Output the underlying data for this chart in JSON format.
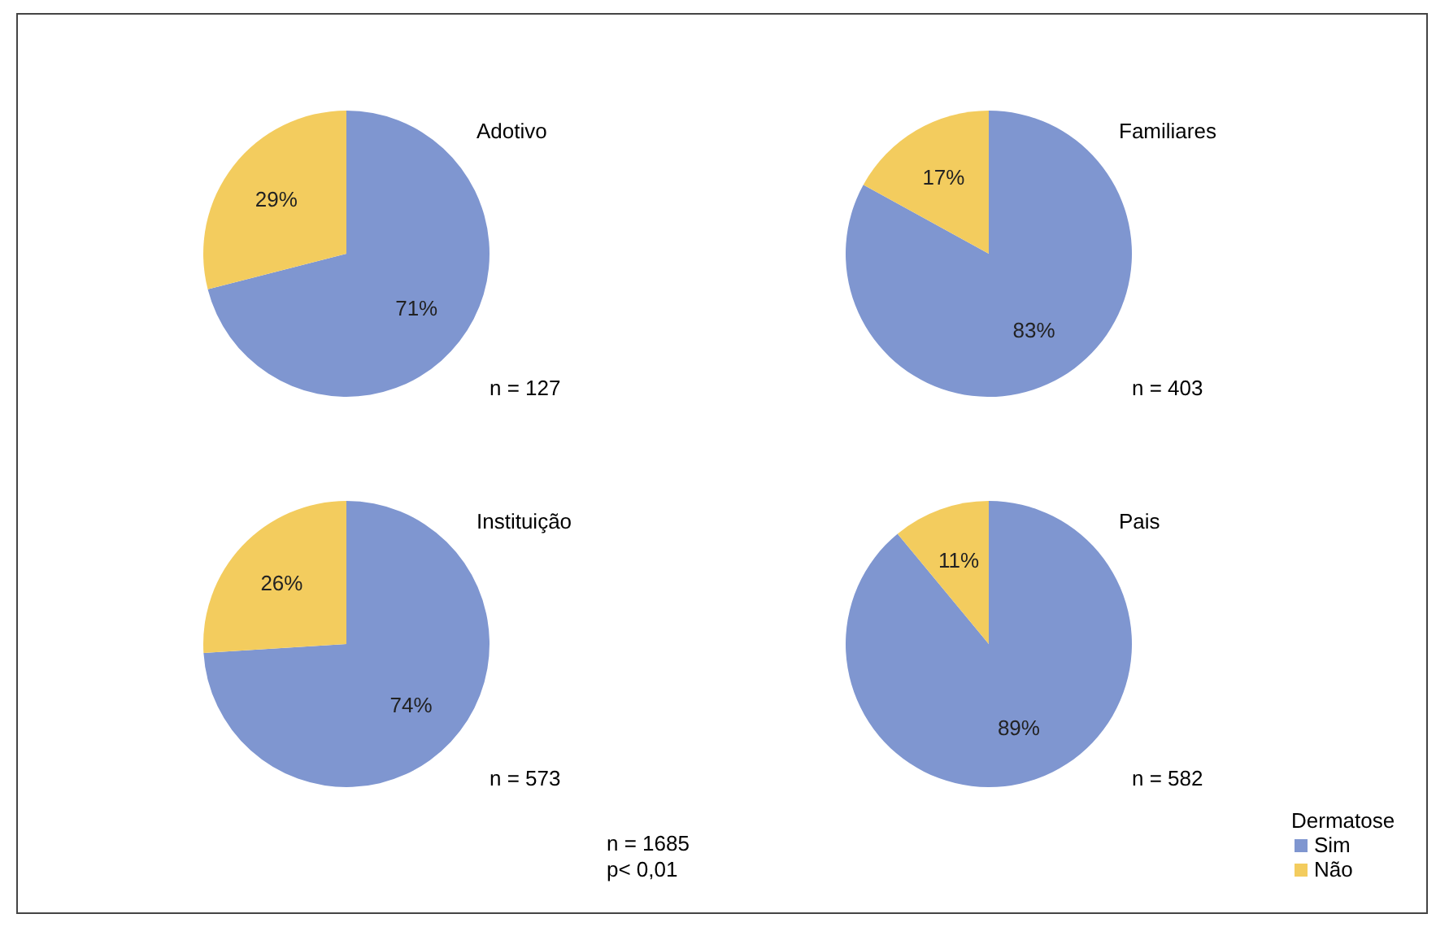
{
  "chart_data": [
    {
      "type": "pie",
      "title": "Adotivo",
      "categories": [
        null,
        null
      ],
      "values": [
        71,
        29
      ],
      "value_labels": [
        "71%",
        "29%"
      ],
      "colors": [
        "#7f96d0",
        "#f3cc5e"
      ],
      "annotations": [
        "n = 127"
      ]
    },
    {
      "type": "pie",
      "title": "Familiares",
      "categories": [
        null,
        null
      ],
      "values": [
        83,
        17
      ],
      "value_labels": [
        "83%",
        "17%"
      ],
      "colors": [
        "#7f96d0",
        "#f3cc5e"
      ],
      "annotations": [
        "n = 403"
      ]
    },
    {
      "type": "pie",
      "title": "Instituição",
      "categories": [
        null,
        null
      ],
      "values": [
        74,
        26
      ],
      "value_labels": [
        "74%",
        "26%"
      ],
      "colors": [
        "#7f96d0",
        "#f3cc5e"
      ],
      "annotations": [
        "n = 573"
      ]
    },
    {
      "type": "pie",
      "title": "Pais",
      "categories": [
        "Sim",
        "Não"
      ],
      "values": [
        89,
        11
      ],
      "value_labels": [
        "89%",
        "11%"
      ],
      "colors": [
        "#7f96d0",
        "#f3cc5e"
      ],
      "annotations": [
        "n = 582"
      ],
      "legend": "bottom right",
      "legend_title": "Dermatose"
    },
    {
      "type": "other",
      "annotations": [
        "n = 1685",
        "p< 0,01"
      ]
    }
  ]
}
